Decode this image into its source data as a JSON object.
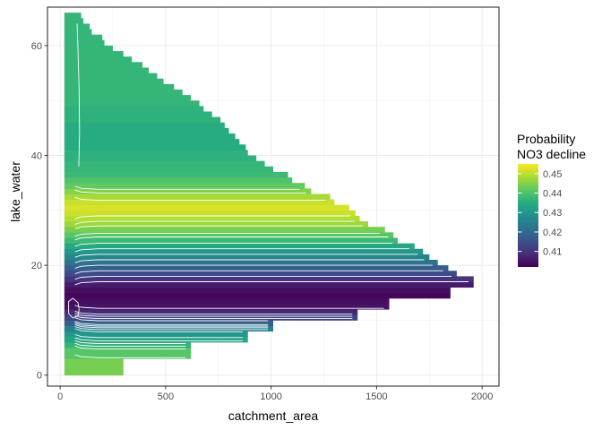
{
  "chart_data": {
    "type": "heatmap",
    "xlabel": "catchment_area",
    "ylabel": "lake_water",
    "xlim": [
      -60,
      2080
    ],
    "ylim": [
      -2,
      67
    ],
    "x_ticks": [
      0,
      500,
      1000,
      1500,
      2000
    ],
    "y_ticks": [
      0,
      20,
      40,
      60
    ],
    "x_tick_labels": [
      "0",
      "500",
      "1000",
      "1500",
      "2000"
    ],
    "y_tick_labels": [
      "0",
      "20",
      "40",
      "60"
    ],
    "grid": true,
    "legend": {
      "title_line1": "Probability",
      "title_line2": "NO3 decline",
      "position": "right",
      "min": 0.402,
      "max": 0.455,
      "breaks": [
        0.45,
        0.44,
        0.43,
        0.42,
        0.41
      ],
      "break_labels": [
        "0.45",
        "0.44",
        "0.43",
        "0.42",
        "0.41"
      ],
      "colors": [
        "#440154",
        "#472c7a",
        "#3b528b",
        "#2c728e",
        "#21908d",
        "#27ad81",
        "#5dc963",
        "#aadc32",
        "#fde725"
      ]
    },
    "colorscale": "viridis",
    "x_min": 20,
    "lake_water_step": 1,
    "row_x_max": [
      300,
      300,
      300,
      620,
      620,
      620,
      890,
      890,
      1010,
      1010,
      1410,
      1410,
      1560,
      1560,
      1850,
      1850,
      1960,
      1960,
      1880,
      1840,
      1790,
      1750,
      1720,
      1680,
      1600,
      1580,
      1540,
      1460,
      1420,
      1400,
      1370,
      1300,
      1280,
      1190,
      1160,
      1100,
      1080,
      1010,
      970,
      930,
      890,
      880,
      850,
      830,
      800,
      780,
      760,
      720,
      680,
      660,
      620,
      580,
      540,
      490,
      460,
      420,
      390,
      340,
      300,
      250,
      210,
      200,
      150,
      140,
      110,
      100
    ],
    "row_values": [
      0.444,
      0.444,
      0.444,
      0.441,
      0.441,
      0.437,
      0.433,
      0.43,
      0.425,
      0.418,
      0.413,
      0.408,
      0.405,
      0.404,
      0.403,
      0.404,
      0.406,
      0.41,
      0.414,
      0.418,
      0.422,
      0.426,
      0.43,
      0.434,
      0.438,
      0.441,
      0.444,
      0.447,
      0.449,
      0.451,
      0.452,
      0.451,
      0.448,
      0.445,
      0.442,
      0.44,
      0.438,
      0.437,
      0.437,
      0.436,
      0.436,
      0.435,
      0.435,
      0.435,
      0.435,
      0.435,
      0.436,
      0.436,
      0.436,
      0.437,
      0.437,
      0.437,
      0.437,
      0.437,
      0.437,
      0.437,
      0.437,
      0.437,
      0.437,
      0.437,
      0.437,
      0.437,
      0.437,
      0.437,
      0.437,
      0.437
    ],
    "contour_levels": [
      0.404,
      0.406,
      0.408,
      0.41,
      0.412,
      0.414,
      0.416,
      0.418,
      0.42,
      0.422,
      0.424,
      0.426,
      0.428,
      0.43,
      0.432,
      0.434,
      0.436,
      0.438,
      0.44,
      0.442,
      0.444,
      0.446,
      0.448,
      0.45,
      0.452
    ]
  }
}
